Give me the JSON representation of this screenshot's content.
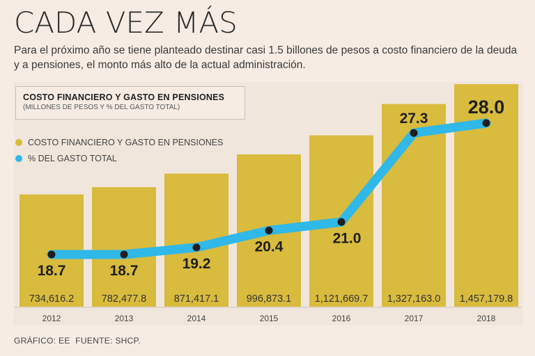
{
  "header": {
    "title": "CADA VEZ MÁS",
    "intro": "Para el próximo año se tiene planteado destinar casi 1.5 billones de pesos a costo financiero de la deuda y a pensiones, el monto más alto de la actual administración."
  },
  "legend": {
    "title": "COSTO FINANCIERO Y GASTO EN PENSIONES",
    "subtitle": "(MILLONES DE PESOS Y % DEL GASTO TOTAL)",
    "items": [
      {
        "label": "COSTO FINANCIERO Y GASTO EN PENSIONES",
        "color": "#d9bb3e"
      },
      {
        "label": "% DEL GASTO TOTAL",
        "color": "#2fb8e8"
      }
    ]
  },
  "footer": {
    "graphic": "GRÁFICO: EE",
    "source": "FUENTE: SHCP."
  },
  "chart_data": {
    "type": "bar",
    "categories": [
      "2012",
      "2013",
      "2014",
      "2015",
      "2016",
      "2017",
      "2018"
    ],
    "series": [
      {
        "name": "COSTO FINANCIERO Y GASTO EN PENSIONES",
        "type": "bar",
        "values": [
          734616.2,
          782477.8,
          871417.1,
          996873.1,
          1121669.7,
          1327163.0,
          1457179.8
        ],
        "labels": [
          "734,616.2",
          "782,477.8",
          "871,417.1",
          "996,873.1",
          "1,121,669.7",
          "1,327,163.0",
          "1,457,179.8"
        ],
        "color": "#d9bb3e"
      },
      {
        "name": "% DEL GASTO TOTAL",
        "type": "line",
        "values": [
          18.7,
          18.7,
          19.2,
          20.4,
          21.0,
          27.3,
          28.0
        ],
        "labels": [
          "18.7",
          "18.7",
          "19.2",
          "20.4",
          "21.0",
          "27.3",
          "28.0"
        ],
        "color": "#2fb8e8"
      }
    ],
    "title": "COSTO FINANCIERO Y GASTO EN PENSIONES",
    "subtitle": "(MILLONES DE PESOS Y % DEL GASTO TOTAL)",
    "legend_position": "top-left",
    "grid": false
  }
}
